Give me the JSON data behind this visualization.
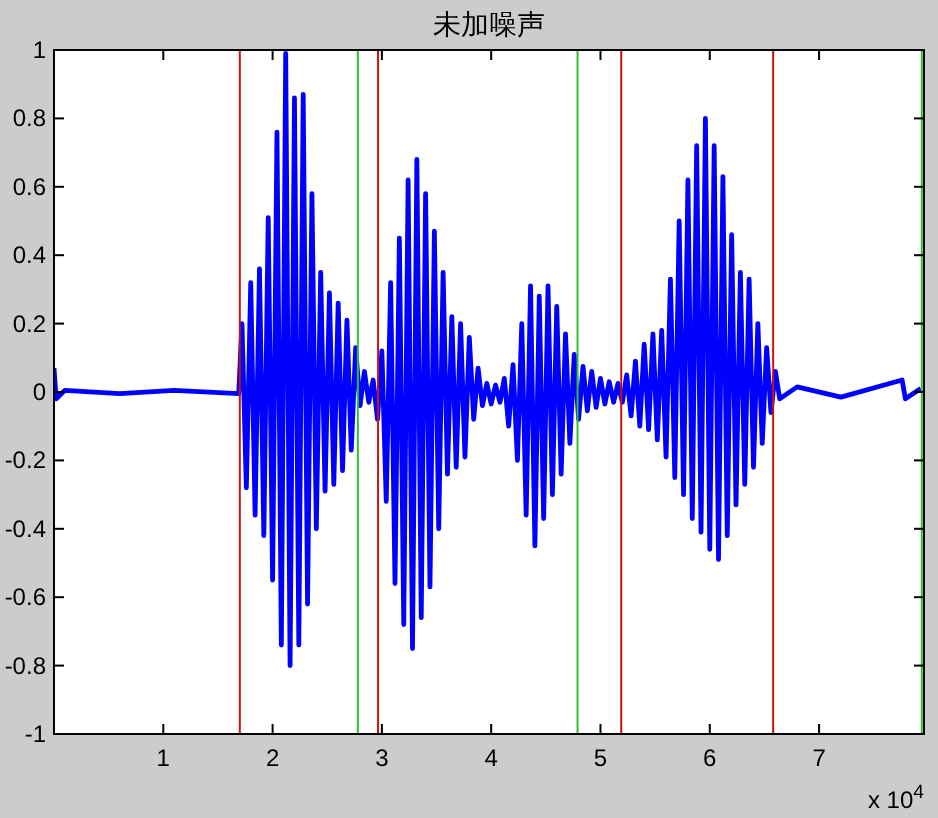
{
  "chart_data": {
    "type": "line",
    "title": "未加噪声",
    "x": [
      0,
      0.02,
      0.1,
      0.6,
      1.1,
      1.69,
      1.72,
      1.76,
      1.8,
      1.84,
      1.88,
      1.92,
      1.96,
      2,
      2.04,
      2.08,
      2.12,
      2.16,
      2.2,
      2.24,
      2.28,
      2.32,
      2.36,
      2.4,
      2.44,
      2.48,
      2.52,
      2.56,
      2.6,
      2.64,
      2.68,
      2.72,
      2.76,
      2.8,
      2.84,
      2.88,
      2.92,
      2.96,
      3,
      3.04,
      3.08,
      3.12,
      3.16,
      3.2,
      3.24,
      3.28,
      3.32,
      3.36,
      3.4,
      3.44,
      3.48,
      3.52,
      3.56,
      3.6,
      3.64,
      3.68,
      3.72,
      3.76,
      3.8,
      3.84,
      3.88,
      3.92,
      3.96,
      4,
      4.04,
      4.08,
      4.12,
      4.16,
      4.2,
      4.24,
      4.28,
      4.32,
      4.36,
      4.4,
      4.44,
      4.48,
      4.52,
      4.56,
      4.6,
      4.64,
      4.68,
      4.72,
      4.76,
      4.8,
      4.84,
      4.88,
      4.92,
      4.96,
      5,
      5.04,
      5.08,
      5.12,
      5.16,
      5.2,
      5.24,
      5.28,
      5.32,
      5.36,
      5.4,
      5.44,
      5.48,
      5.52,
      5.56,
      5.6,
      5.64,
      5.68,
      5.72,
      5.76,
      5.8,
      5.84,
      5.88,
      5.92,
      5.96,
      6,
      6.04,
      6.08,
      6.12,
      6.16,
      6.2,
      6.24,
      6.28,
      6.32,
      6.36,
      6.4,
      6.44,
      6.48,
      6.52,
      6.56,
      6.6,
      6.64,
      6.8,
      7.2,
      7.76,
      7.79,
      7.93
    ],
    "series": [
      {
        "color": "#0000ff",
        "values": [
          0.07,
          -0.02,
          0.005,
          -0.005,
          0.005,
          -0.005,
          0.2,
          -0.28,
          0.32,
          -0.36,
          0.36,
          -0.42,
          0.51,
          -0.55,
          0.76,
          -0.74,
          0.99,
          -0.8,
          0.86,
          -0.74,
          0.87,
          -0.62,
          0.58,
          -0.4,
          0.35,
          -0.29,
          0.29,
          -0.27,
          0.26,
          -0.23,
          0.21,
          -0.17,
          0.13,
          -0.04,
          0.06,
          -0.03,
          0.035,
          -0.08,
          0.12,
          -0.32,
          0.32,
          -0.56,
          0.45,
          -0.68,
          0.62,
          -0.75,
          0.68,
          -0.66,
          0.58,
          -0.57,
          0.47,
          -0.4,
          0.35,
          -0.24,
          0.22,
          -0.22,
          0.2,
          -0.19,
          0.16,
          -0.08,
          0.07,
          -0.04,
          0.025,
          -0.035,
          0.02,
          -0.03,
          0.04,
          -0.1,
          0.08,
          -0.2,
          0.2,
          -0.36,
          0.31,
          -0.45,
          0.28,
          -0.37,
          0.31,
          -0.3,
          0.25,
          -0.24,
          0.17,
          -0.15,
          0.11,
          -0.08,
          0.075,
          -0.055,
          0.06,
          -0.045,
          0.04,
          -0.035,
          0.03,
          -0.03,
          0.025,
          -0.03,
          0.05,
          -0.07,
          0.09,
          -0.1,
          0.14,
          -0.11,
          0.17,
          -0.14,
          0.18,
          -0.19,
          0.33,
          -0.25,
          0.5,
          -0.3,
          0.62,
          -0.37,
          0.72,
          -0.41,
          0.8,
          -0.46,
          0.72,
          -0.49,
          0.63,
          -0.42,
          0.46,
          -0.33,
          0.35,
          -0.27,
          0.33,
          -0.22,
          0.2,
          -0.15,
          0.13,
          -0.06,
          0.06,
          -0.02,
          0.015,
          -0.015,
          0.035,
          -0.02,
          0.01
        ]
      }
    ],
    "xlim": [
      0,
      7.96
    ],
    "xticks": [
      1,
      2,
      3,
      4,
      5,
      6,
      7
    ],
    "ylim": [
      -1,
      1
    ],
    "yticks": [
      -1,
      -0.8,
      -0.6,
      -0.4,
      -0.2,
      0,
      0.2,
      0.4,
      0.6,
      0.8,
      1
    ],
    "ref_lines": [
      {
        "axis": "x",
        "value": 1.7,
        "color": "#cc1010"
      },
      {
        "axis": "x",
        "value": 2.78,
        "color": "#30c030"
      },
      {
        "axis": "x",
        "value": 2.965,
        "color": "#cc1010"
      },
      {
        "axis": "x",
        "value": 4.79,
        "color": "#30c030"
      },
      {
        "axis": "x",
        "value": 5.19,
        "color": "#cc1010"
      },
      {
        "axis": "x",
        "value": 6.58,
        "color": "#cc1010"
      },
      {
        "axis": "x",
        "value": 7.94,
        "color": "#30c030"
      }
    ],
    "annotations": [
      "x 10$^{4}$"
    ]
  }
}
